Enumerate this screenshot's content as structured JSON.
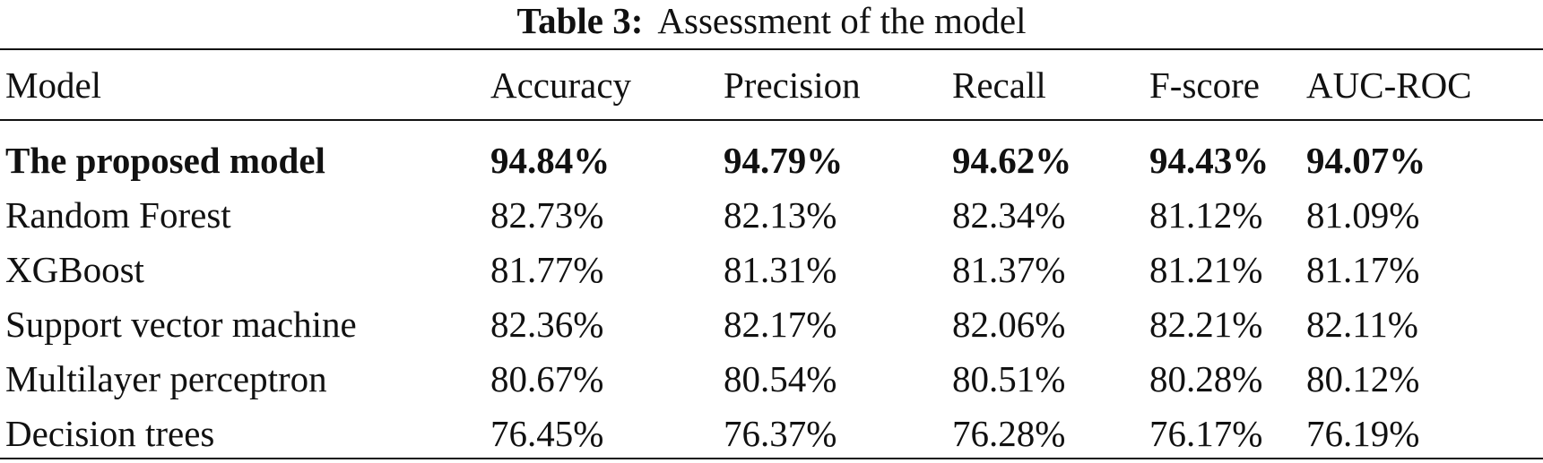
{
  "caption": {
    "label": "Table 3:",
    "text": "Assessment of the model"
  },
  "table": {
    "headers": [
      "Model",
      "Accuracy",
      "Precision",
      "Recall",
      "F-score",
      "AUC-ROC"
    ],
    "rows": [
      {
        "model": "The proposed model",
        "bold": true,
        "values": [
          "94.84%",
          "94.79%",
          "94.62%",
          "94.43%",
          "94.07%"
        ]
      },
      {
        "model": "Random Forest",
        "bold": false,
        "values": [
          "82.73%",
          "82.13%",
          "82.34%",
          "81.12%",
          "81.09%"
        ]
      },
      {
        "model": "XGBoost",
        "bold": false,
        "values": [
          "81.77%",
          "81.31%",
          "81.37%",
          "81.21%",
          "81.17%"
        ]
      },
      {
        "model": "Support vector machine",
        "bold": false,
        "values": [
          "82.36%",
          "82.17%",
          "82.06%",
          "82.21%",
          "82.11%"
        ]
      },
      {
        "model": "Multilayer perceptron",
        "bold": false,
        "values": [
          "80.67%",
          "80.54%",
          "80.51%",
          "80.28%",
          "80.12%"
        ]
      },
      {
        "model": "Decision trees",
        "bold": false,
        "values": [
          "76.45%",
          "76.37%",
          "76.28%",
          "76.17%",
          "76.19%"
        ]
      }
    ]
  }
}
